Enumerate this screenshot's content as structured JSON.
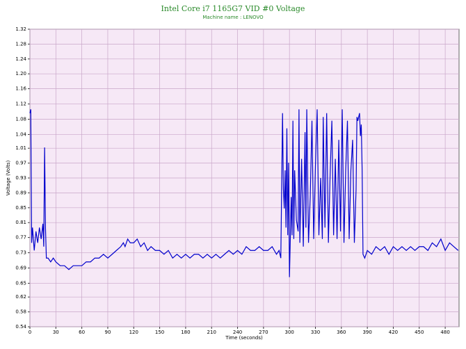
{
  "chart_data": {
    "type": "line",
    "title": "Intel Core i7 1165G7 VID #0 Voltage",
    "subtitle": "Machine name : LENOVO",
    "x_label": "Time (seconds)",
    "y_label": "Voltage (Volts)",
    "xlim": [
      0,
      496
    ],
    "ylim": [
      0.54,
      1.32
    ],
    "xticks": [
      0,
      30,
      60,
      90,
      120,
      150,
      180,
      210,
      240,
      270,
      300,
      330,
      360,
      390,
      420,
      450,
      480
    ],
    "yticks": [
      0.54,
      {
        "value": 0.579,
        "label": "0.58"
      },
      {
        "value": 0.618,
        "label": "0.62"
      },
      {
        "value": 0.654,
        "label": "0.65"
      },
      {
        "value": 0.694,
        "label": "0.69"
      },
      {
        "value": 0.734,
        "label": "0.73"
      },
      {
        "value": 0.774,
        "label": "0.77"
      },
      {
        "value": 0.813,
        "label": "0.81"
      },
      {
        "value": 0.852,
        "label": "0.85"
      },
      {
        "value": 0.891,
        "label": "0.89"
      },
      {
        "value": 0.93,
        "label": "0.93"
      },
      {
        "value": 0.969,
        "label": "0.97"
      },
      {
        "value": 1.008,
        "label": "1.01"
      },
      {
        "value": 1.044,
        "label": "1.04"
      },
      {
        "value": 1.084,
        "label": "1.08"
      },
      {
        "value": 1.124,
        "label": "1.12"
      },
      {
        "value": 1.164,
        "label": "1.16"
      },
      {
        "value": 1.203,
        "label": "1.20"
      },
      {
        "value": 1.242,
        "label": "1.24"
      },
      {
        "value": 1.281,
        "label": "1.28"
      },
      {
        "value": 1.32,
        "label": "1.32"
      }
    ],
    "grid": true,
    "x": [
      0,
      1,
      2,
      3,
      5,
      7,
      9,
      11,
      13,
      15,
      16,
      17,
      18,
      19,
      21,
      24,
      27,
      30,
      35,
      40,
      45,
      50,
      55,
      60,
      65,
      70,
      75,
      80,
      85,
      90,
      95,
      100,
      105,
      108,
      110,
      113,
      116,
      120,
      124,
      128,
      132,
      136,
      140,
      145,
      150,
      155,
      160,
      165,
      170,
      175,
      180,
      185,
      190,
      195,
      200,
      205,
      210,
      215,
      220,
      225,
      230,
      235,
      240,
      245,
      250,
      255,
      260,
      265,
      270,
      275,
      280,
      285,
      288,
      290,
      292,
      293,
      294,
      295,
      296,
      297,
      298,
      299,
      300,
      302,
      303,
      304,
      305,
      306,
      308,
      310,
      311,
      312,
      314,
      316,
      318,
      319,
      320,
      322,
      324,
      326,
      328,
      330,
      332,
      334,
      336,
      338,
      339,
      341,
      343,
      345,
      347,
      349,
      351,
      353,
      355,
      357,
      359,
      361,
      363,
      365,
      367,
      369,
      371,
      373,
      375,
      377,
      378,
      379,
      381,
      382,
      383,
      384,
      385,
      387,
      390,
      395,
      400,
      405,
      410,
      415,
      420,
      425,
      430,
      435,
      440,
      445,
      450,
      455,
      460,
      465,
      470,
      475,
      480,
      485,
      490,
      495
    ],
    "series": [
      {
        "name": "VID #0",
        "color": "#0000cc",
        "values": [
          1.1,
          1.11,
          0.76,
          0.8,
          0.74,
          0.79,
          0.76,
          0.8,
          0.77,
          0.81,
          0.75,
          1.01,
          0.8,
          0.72,
          0.72,
          0.71,
          0.72,
          0.71,
          0.7,
          0.7,
          0.69,
          0.7,
          0.7,
          0.7,
          0.71,
          0.71,
          0.72,
          0.72,
          0.73,
          0.72,
          0.73,
          0.74,
          0.75,
          0.76,
          0.75,
          0.77,
          0.76,
          0.76,
          0.77,
          0.75,
          0.76,
          0.74,
          0.75,
          0.74,
          0.74,
          0.73,
          0.74,
          0.72,
          0.73,
          0.72,
          0.73,
          0.72,
          0.73,
          0.73,
          0.72,
          0.73,
          0.72,
          0.73,
          0.72,
          0.73,
          0.74,
          0.73,
          0.74,
          0.73,
          0.75,
          0.74,
          0.74,
          0.75,
          0.74,
          0.74,
          0.75,
          0.73,
          0.74,
          0.72,
          1.1,
          0.9,
          0.85,
          0.95,
          0.8,
          1.06,
          0.78,
          0.97,
          0.67,
          0.88,
          0.78,
          1.08,
          0.77,
          0.95,
          0.82,
          0.79,
          1.11,
          0.76,
          0.98,
          0.75,
          1.05,
          0.8,
          1.11,
          0.76,
          0.88,
          1.08,
          0.77,
          0.96,
          1.11,
          0.78,
          0.93,
          0.77,
          1.09,
          0.8,
          1.1,
          0.76,
          0.94,
          1.08,
          0.78,
          0.98,
          0.77,
          1.03,
          0.79,
          1.11,
          0.76,
          0.95,
          1.08,
          0.77,
          0.95,
          1.03,
          0.76,
          0.9,
          1.09,
          1.08,
          1.1,
          1.04,
          1.07,
          0.95,
          0.73,
          0.72,
          0.74,
          0.73,
          0.75,
          0.74,
          0.75,
          0.73,
          0.75,
          0.74,
          0.75,
          0.74,
          0.75,
          0.74,
          0.75,
          0.75,
          0.74,
          0.76,
          0.75,
          0.77,
          0.74,
          0.76,
          0.75,
          0.74
        ]
      }
    ]
  }
}
